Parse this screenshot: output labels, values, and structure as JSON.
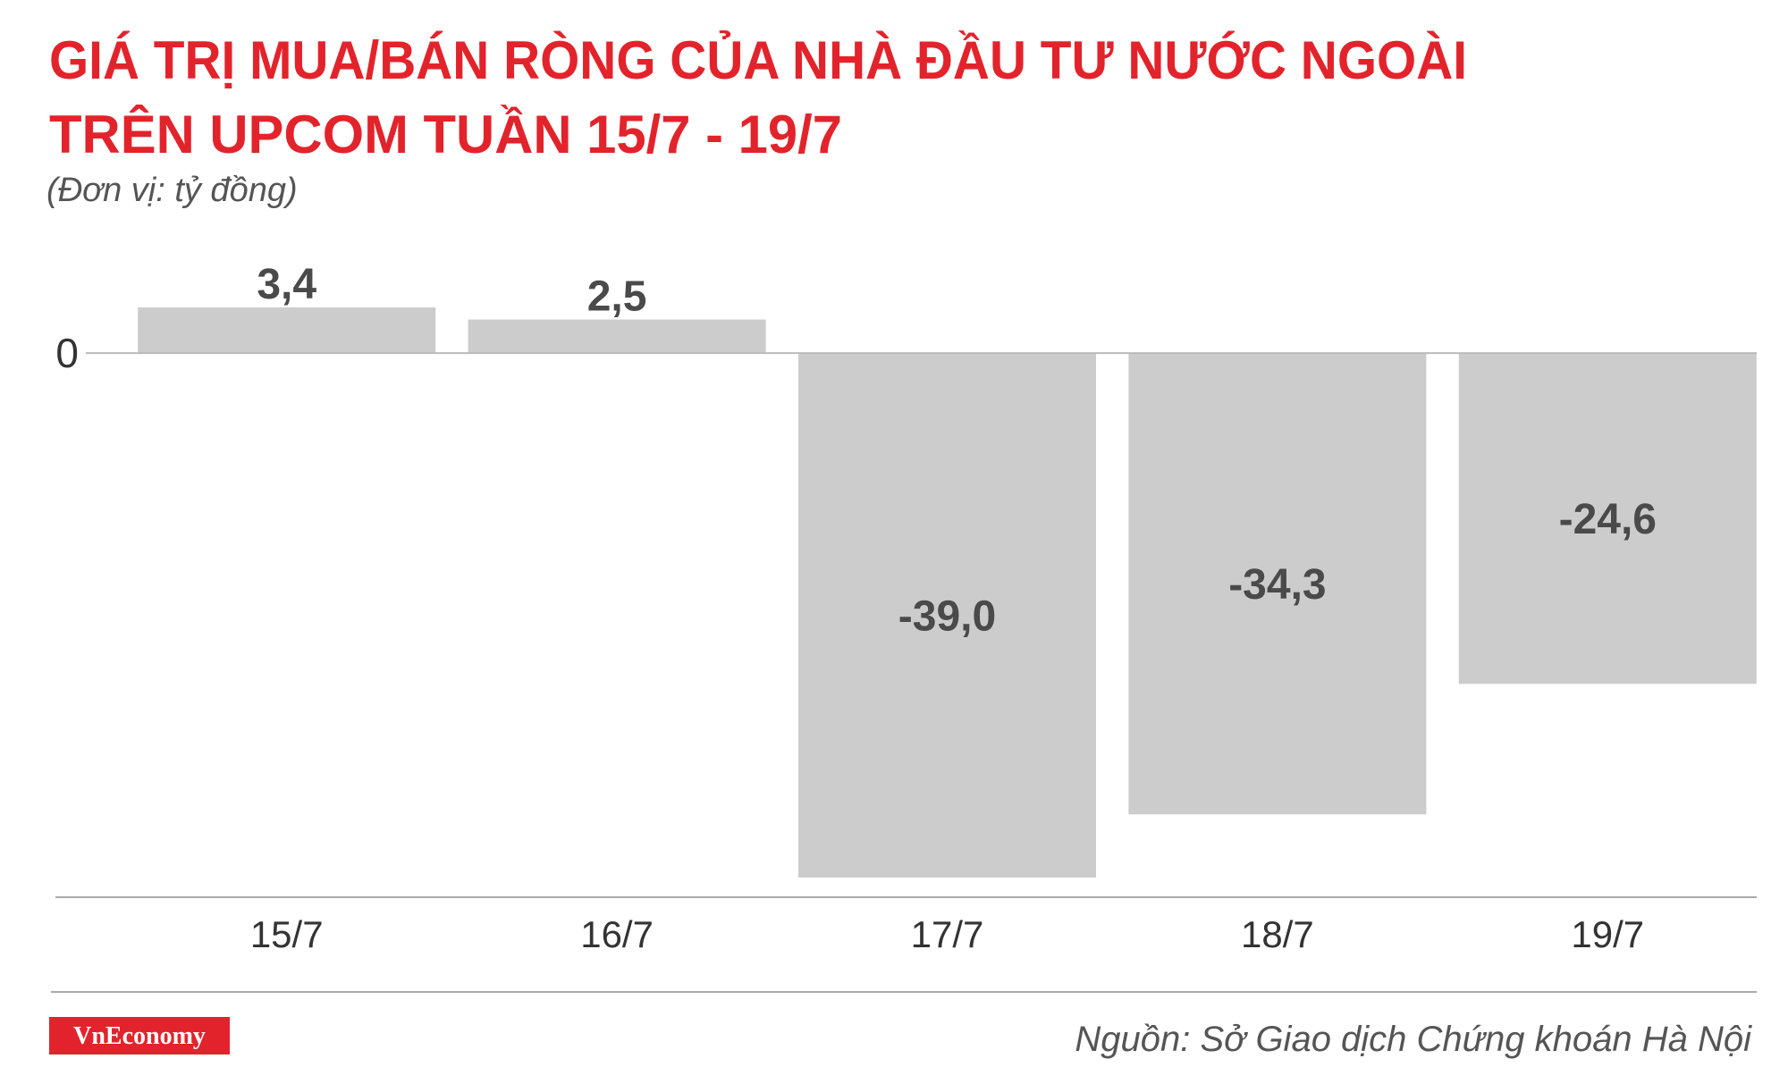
{
  "chart_data": {
    "type": "bar",
    "title": [
      "GIÁ TRỊ MUA/BÁN RÒNG CỦA NHÀ ĐẦU TƯ NƯỚC NGOÀI",
      "TRÊN UPCOM TUẦN 15/7 - 19/7"
    ],
    "subtitle": "(Đơn vị: tỷ đồng)",
    "categories": [
      "15/7",
      "16/7",
      "17/7",
      "18/7",
      "19/7"
    ],
    "values": [
      3.4,
      2.5,
      -39.0,
      -34.3,
      -24.6
    ],
    "value_labels": [
      "3,4",
      "2,5",
      "-39,0",
      "-34,3",
      "-24,6"
    ],
    "color": "#cccccc",
    "ylim": [
      -40,
      4
    ],
    "yticks": [
      0
    ],
    "grid": false,
    "source": "Nguồn: Sở Giao dịch Chứng khoán Hà Nội",
    "logo": "VnEconomy"
  }
}
